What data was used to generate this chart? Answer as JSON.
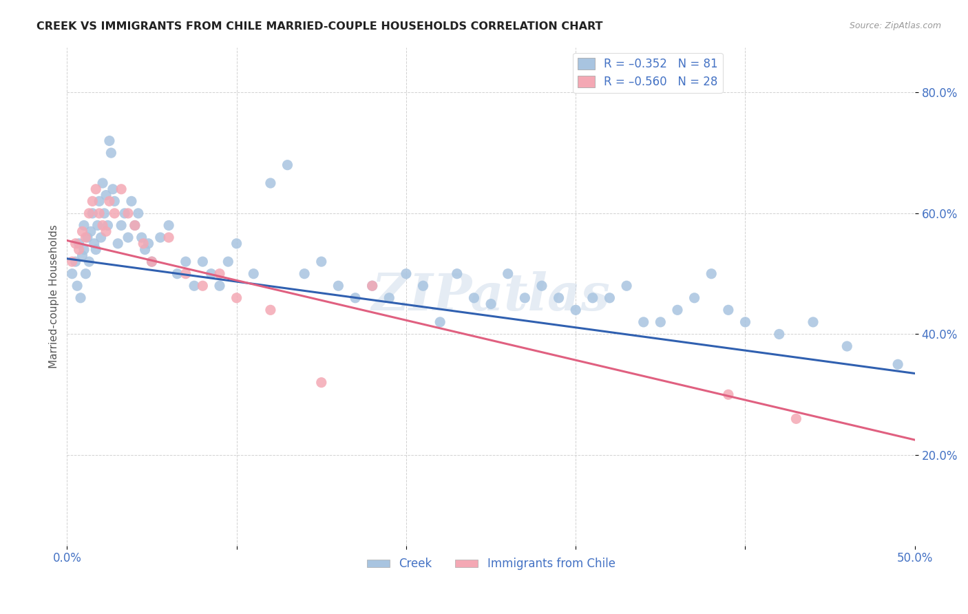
{
  "title": "CREEK VS IMMIGRANTS FROM CHILE MARRIED-COUPLE HOUSEHOLDS CORRELATION CHART",
  "source": "Source: ZipAtlas.com",
  "ylabel": "Married-couple Households",
  "xmin": 0.0,
  "xmax": 0.5,
  "ymin": 0.05,
  "ymax": 0.875,
  "x_tick_positions": [
    0.0,
    0.1,
    0.2,
    0.3,
    0.4,
    0.5
  ],
  "x_tick_labels": [
    "0.0%",
    "",
    "",
    "",
    "",
    "50.0%"
  ],
  "y_tick_positions": [
    0.2,
    0.4,
    0.6,
    0.8
  ],
  "y_tick_labels": [
    "20.0%",
    "40.0%",
    "60.0%",
    "80.0%"
  ],
  "legend_r1": "R = –0.352",
  "legend_n1": "N = 81",
  "legend_r2": "R = –0.560",
  "legend_n2": "N = 28",
  "color_blue": "#a8c4e0",
  "color_pink": "#f4a8b4",
  "line_color_blue": "#3060b0",
  "line_color_pink": "#e06080",
  "text_color": "#4472c4",
  "watermark": "ZIPatlas",
  "creek_x": [
    0.003,
    0.005,
    0.006,
    0.007,
    0.008,
    0.009,
    0.01,
    0.01,
    0.011,
    0.012,
    0.013,
    0.014,
    0.015,
    0.016,
    0.017,
    0.018,
    0.019,
    0.02,
    0.021,
    0.022,
    0.023,
    0.024,
    0.025,
    0.026,
    0.027,
    0.028,
    0.03,
    0.032,
    0.034,
    0.036,
    0.038,
    0.04,
    0.042,
    0.044,
    0.046,
    0.048,
    0.05,
    0.055,
    0.06,
    0.065,
    0.07,
    0.075,
    0.08,
    0.085,
    0.09,
    0.095,
    0.1,
    0.11,
    0.12,
    0.13,
    0.14,
    0.15,
    0.16,
    0.17,
    0.18,
    0.19,
    0.2,
    0.21,
    0.22,
    0.23,
    0.24,
    0.25,
    0.26,
    0.27,
    0.28,
    0.29,
    0.3,
    0.31,
    0.32,
    0.33,
    0.34,
    0.35,
    0.36,
    0.37,
    0.38,
    0.39,
    0.4,
    0.42,
    0.44,
    0.46,
    0.49
  ],
  "creek_y": [
    0.5,
    0.52,
    0.48,
    0.55,
    0.46,
    0.53,
    0.54,
    0.58,
    0.5,
    0.56,
    0.52,
    0.57,
    0.6,
    0.55,
    0.54,
    0.58,
    0.62,
    0.56,
    0.65,
    0.6,
    0.63,
    0.58,
    0.72,
    0.7,
    0.64,
    0.62,
    0.55,
    0.58,
    0.6,
    0.56,
    0.62,
    0.58,
    0.6,
    0.56,
    0.54,
    0.55,
    0.52,
    0.56,
    0.58,
    0.5,
    0.52,
    0.48,
    0.52,
    0.5,
    0.48,
    0.52,
    0.55,
    0.5,
    0.65,
    0.68,
    0.5,
    0.52,
    0.48,
    0.46,
    0.48,
    0.46,
    0.5,
    0.48,
    0.42,
    0.5,
    0.46,
    0.45,
    0.5,
    0.46,
    0.48,
    0.46,
    0.44,
    0.46,
    0.46,
    0.48,
    0.42,
    0.42,
    0.44,
    0.46,
    0.5,
    0.44,
    0.42,
    0.4,
    0.42,
    0.38,
    0.35
  ],
  "chile_x": [
    0.003,
    0.005,
    0.007,
    0.009,
    0.011,
    0.013,
    0.015,
    0.017,
    0.019,
    0.021,
    0.023,
    0.025,
    0.028,
    0.032,
    0.036,
    0.04,
    0.045,
    0.05,
    0.06,
    0.07,
    0.08,
    0.09,
    0.1,
    0.12,
    0.15,
    0.18,
    0.39,
    0.43
  ],
  "chile_y": [
    0.52,
    0.55,
    0.54,
    0.57,
    0.56,
    0.6,
    0.62,
    0.64,
    0.6,
    0.58,
    0.57,
    0.62,
    0.6,
    0.64,
    0.6,
    0.58,
    0.55,
    0.52,
    0.56,
    0.5,
    0.48,
    0.5,
    0.46,
    0.44,
    0.32,
    0.48,
    0.3,
    0.26
  ],
  "blue_line_x": [
    0.0,
    0.5
  ],
  "blue_line_y": [
    0.525,
    0.335
  ],
  "pink_line_x": [
    0.0,
    0.5
  ],
  "pink_line_y": [
    0.555,
    0.225
  ]
}
